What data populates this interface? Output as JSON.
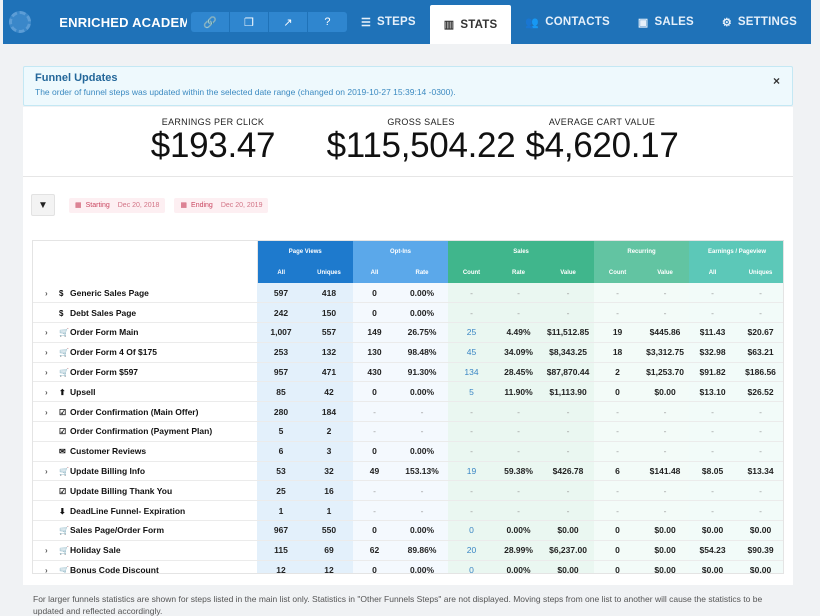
{
  "topbar": {
    "funnel_title": "ENRICHED ACADEMY - S...",
    "tools": [
      "link-icon",
      "copy-icon",
      "external-link-icon",
      "help-icon"
    ],
    "tabs": [
      {
        "label": "STEPS",
        "icon": "steps-icon",
        "active": false
      },
      {
        "label": "STATS",
        "icon": "chart-icon",
        "active": true
      },
      {
        "label": "CONTACTS",
        "icon": "users-icon",
        "active": false
      },
      {
        "label": "SALES",
        "icon": "money-icon",
        "active": false
      },
      {
        "label": "SETTINGS",
        "icon": "gear-icon",
        "active": false
      }
    ]
  },
  "alert": {
    "title": "Funnel Updates",
    "text": "The order of funnel steps was updated within the selected date range (changed on 2019-10-27 15:39:14 -0300).",
    "close": "×"
  },
  "metrics": [
    {
      "label": "EARNINGS PER CLICK",
      "value": "$193.47"
    },
    {
      "label": "GROSS SALES",
      "value": "$115,504.22"
    },
    {
      "label": "AVERAGE CART VALUE",
      "value": "$4,620.17"
    }
  ],
  "filters": {
    "starting_label": "Starting",
    "starting_value": "Dec 20, 2018",
    "ending_label": "Ending",
    "ending_value": "Dec 20, 2019"
  },
  "table": {
    "groups": [
      "Page Views",
      "Opt-Ins",
      "Sales",
      "Recurring",
      "Earnings / Pageview"
    ],
    "columns": [
      "All",
      "Uniques",
      "All",
      "Rate",
      "Count",
      "Rate",
      "Value",
      "Count",
      "Value",
      "All",
      "Uniques"
    ],
    "rows": [
      {
        "name": "Generic Sales Page",
        "expand": true,
        "icon": "$",
        "cells": [
          "597",
          "418",
          "0",
          "0.00%",
          "-",
          "-",
          "-",
          "-",
          "-",
          "-",
          "-"
        ]
      },
      {
        "name": "Debt Sales Page",
        "expand": false,
        "icon": "$",
        "cells": [
          "242",
          "150",
          "0",
          "0.00%",
          "-",
          "-",
          "-",
          "-",
          "-",
          "-",
          "-"
        ]
      },
      {
        "name": "Order Form Main",
        "expand": true,
        "icon": "cart",
        "cells": [
          "1,007",
          "557",
          "149",
          "26.75%",
          "25",
          "4.49%",
          "$11,512.85",
          "19",
          "$445.86",
          "$11.43",
          "$20.67"
        ]
      },
      {
        "name": "Order Form 4 Of $175",
        "expand": true,
        "icon": "cart",
        "cells": [
          "253",
          "132",
          "130",
          "98.48%",
          "45",
          "34.09%",
          "$8,343.25",
          "18",
          "$3,312.75",
          "$32.98",
          "$63.21"
        ]
      },
      {
        "name": "Order Form $597",
        "expand": true,
        "icon": "cart",
        "cells": [
          "957",
          "471",
          "430",
          "91.30%",
          "134",
          "28.45%",
          "$87,870.44",
          "2",
          "$1,253.70",
          "$91.82",
          "$186.56"
        ]
      },
      {
        "name": "Upsell",
        "expand": true,
        "icon": "up",
        "cells": [
          "85",
          "42",
          "0",
          "0.00%",
          "5",
          "11.90%",
          "$1,113.90",
          "0",
          "$0.00",
          "$13.10",
          "$26.52"
        ]
      },
      {
        "name": "Order Confirmation (Main Offer)",
        "expand": true,
        "icon": "check",
        "cells": [
          "280",
          "184",
          "-",
          "-",
          "-",
          "-",
          "-",
          "-",
          "-",
          "-",
          "-"
        ]
      },
      {
        "name": "Order Confirmation (Payment Plan)",
        "expand": false,
        "icon": "check",
        "cells": [
          "5",
          "2",
          "-",
          "-",
          "-",
          "-",
          "-",
          "-",
          "-",
          "-",
          "-"
        ]
      },
      {
        "name": "Customer Reviews",
        "expand": false,
        "icon": "mail",
        "cells": [
          "6",
          "3",
          "0",
          "0.00%",
          "-",
          "-",
          "-",
          "-",
          "-",
          "-",
          "-"
        ]
      },
      {
        "name": "Update Billing Info",
        "expand": true,
        "icon": "cart",
        "cells": [
          "53",
          "32",
          "49",
          "153.13%",
          "19",
          "59.38%",
          "$426.78",
          "6",
          "$141.48",
          "$8.05",
          "$13.34"
        ]
      },
      {
        "name": "Update Billing Thank You",
        "expand": false,
        "icon": "check",
        "cells": [
          "25",
          "16",
          "-",
          "-",
          "-",
          "-",
          "-",
          "-",
          "-",
          "-",
          "-"
        ]
      },
      {
        "name": "DeadLine Funnel- Expiration",
        "expand": false,
        "icon": "download",
        "cells": [
          "1",
          "1",
          "-",
          "-",
          "-",
          "-",
          "-",
          "-",
          "-",
          "-",
          "-"
        ]
      },
      {
        "name": "Sales Page/Order Form",
        "expand": false,
        "icon": "cart",
        "cells": [
          "967",
          "550",
          "0",
          "0.00%",
          "0",
          "0.00%",
          "$0.00",
          "0",
          "$0.00",
          "$0.00",
          "$0.00"
        ]
      },
      {
        "name": "Holiday Sale",
        "expand": true,
        "icon": "cart",
        "cells": [
          "115",
          "69",
          "62",
          "89.86%",
          "20",
          "28.99%",
          "$6,237.00",
          "0",
          "$0.00",
          "$54.23",
          "$90.39"
        ]
      },
      {
        "name": "Bonus Code Discount",
        "expand": true,
        "icon": "cart",
        "cells": [
          "12",
          "12",
          "0",
          "0.00%",
          "0",
          "0.00%",
          "$0.00",
          "0",
          "$0.00",
          "$0.00",
          "$0.00"
        ]
      }
    ]
  },
  "footer_note": "For larger funnels statistics are shown for steps listed in the main list only. Statistics in \"Other Funnels Steps\" are not displayed. Moving steps from one list to another will cause the statistics to be updated and reflected accordingly."
}
